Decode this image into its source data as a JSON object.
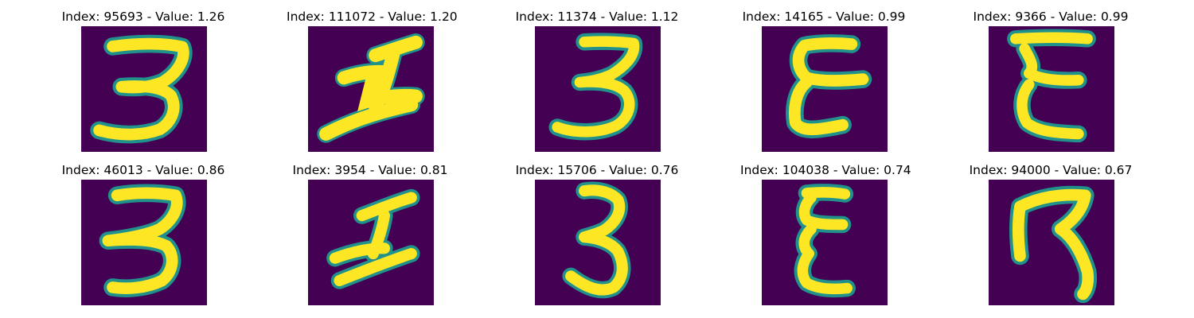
{
  "colors": {
    "background": "#440154",
    "mid_low": "#31688e",
    "mid": "#21918c",
    "mid_high": "#5ec962",
    "foreground": "#fde725"
  },
  "panels": [
    {
      "title": "Index: 95693 - Value: 1.26",
      "glyph": "3"
    },
    {
      "title": "Index: 111072 - Value: 1.20",
      "glyph": "I-slanted"
    },
    {
      "title": "Index: 11374 - Value: 1.12",
      "glyph": "3"
    },
    {
      "title": "Index: 14165 - Value: 0.99",
      "glyph": "E-curly"
    },
    {
      "title": "Index: 9366 - Value: 0.99",
      "glyph": "E-curly"
    },
    {
      "title": "Index: 46013 - Value: 0.86",
      "glyph": "3"
    },
    {
      "title": "Index: 3954 - Value: 0.81",
      "glyph": "I-slanted"
    },
    {
      "title": "Index: 15706 - Value: 0.76",
      "glyph": "3"
    },
    {
      "title": "Index: 104038 - Value: 0.74",
      "glyph": "E-curly"
    },
    {
      "title": "Index: 94000 - Value: 0.67",
      "glyph": "7-hook"
    }
  ]
}
